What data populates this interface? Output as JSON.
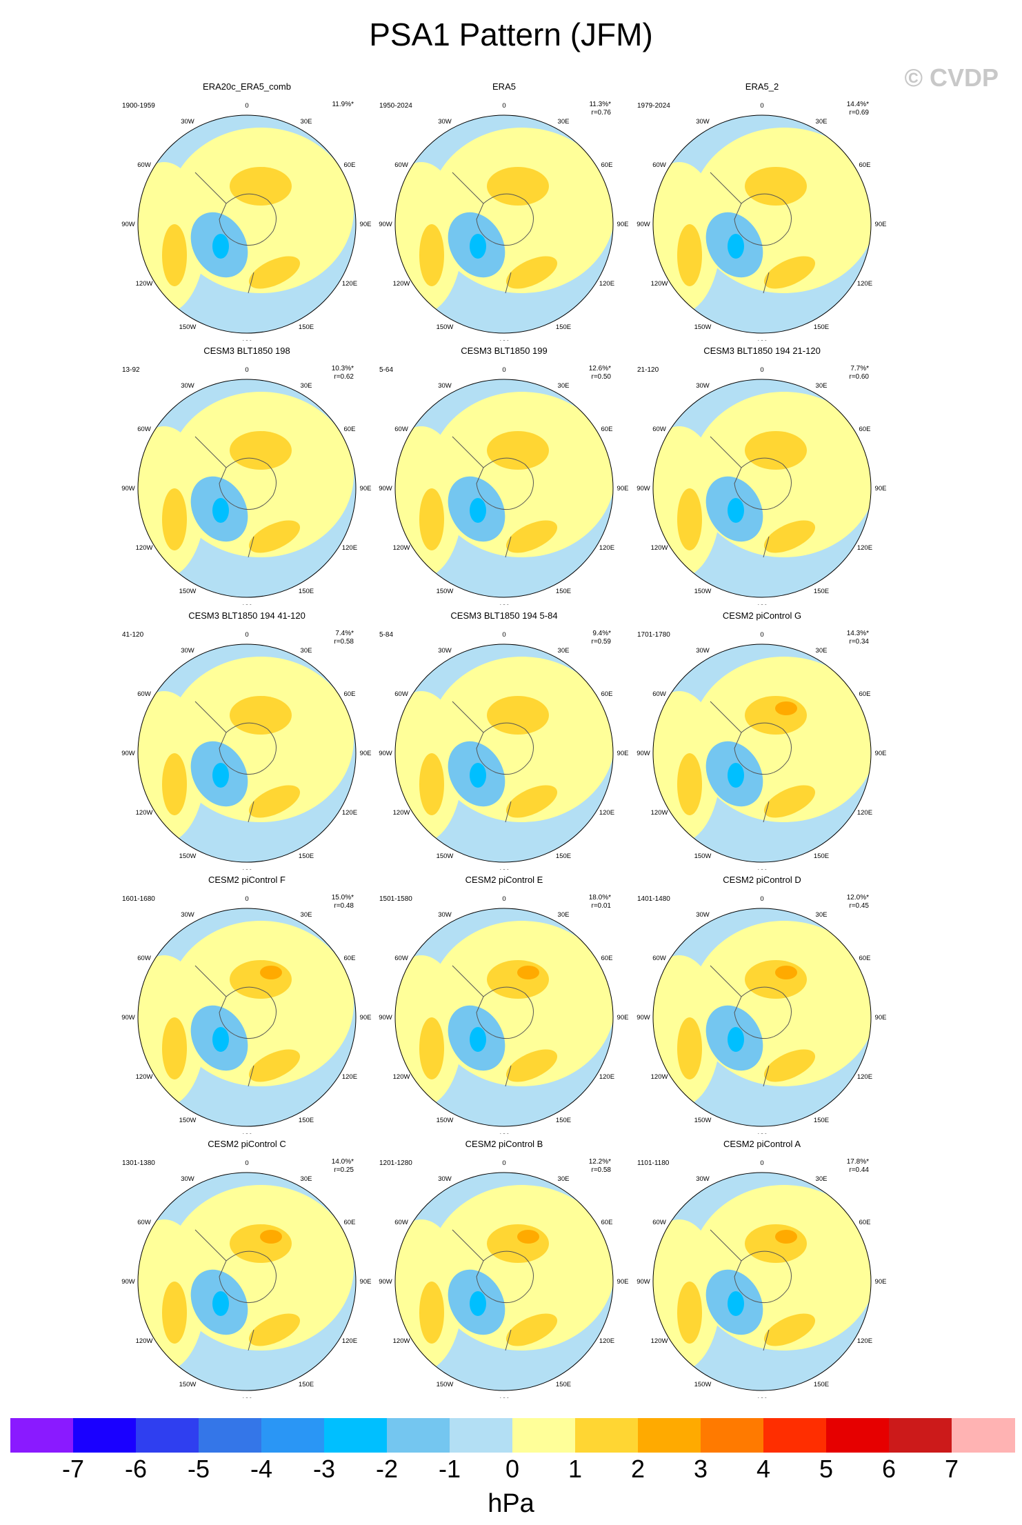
{
  "title": "PSA1 Pattern (JFM)",
  "watermark": "© CVDP",
  "lon_labels": {
    "l0": "0",
    "l30e": "30E",
    "l60e": "60E",
    "l90e": "90E",
    "l120e": "120E",
    "l150e": "150E",
    "l180": "180",
    "l150w": "150W",
    "l120w": "120W",
    "l90w": "90W",
    "l60w": "60W",
    "l30w": "30W"
  },
  "panels": [
    {
      "title": "ERA20c_ERA5_comb",
      "period": "1900-1959",
      "pct": "11.9%*",
      "r": ""
    },
    {
      "title": "ERA5",
      "period": "1950-2024",
      "pct": "11.3%*",
      "r": "r=0.76"
    },
    {
      "title": "ERA5_2",
      "period": "1979-2024",
      "pct": "14.4%*",
      "r": "r=0.69"
    },
    {
      "title": "CESM3 BLT1850 198",
      "period": "13-92",
      "pct": "10.3%*",
      "r": "r=0.62"
    },
    {
      "title": "CESM3 BLT1850 199",
      "period": "5-64",
      "pct": "12.6%*",
      "r": "r=0.50"
    },
    {
      "title": "CESM3 BLT1850 194 21-120",
      "period": "21-120",
      "pct": "7.7%*",
      "r": "r=0.60"
    },
    {
      "title": "CESM3 BLT1850 194 41-120",
      "period": "41-120",
      "pct": "7.4%*",
      "r": "r=0.58"
    },
    {
      "title": "CESM3 BLT1850 194 5-84",
      "period": "5-84",
      "pct": "9.4%*",
      "r": "r=0.59"
    },
    {
      "title": "CESM2 piControl G",
      "period": "1701-1780",
      "pct": "14.3%*",
      "r": "r=0.34"
    },
    {
      "title": "CESM2 piControl F",
      "period": "1601-1680",
      "pct": "15.0%*",
      "r": "r=0.48"
    },
    {
      "title": "CESM2 piControl E",
      "period": "1501-1580",
      "pct": "18.0%*",
      "r": "r=0.01"
    },
    {
      "title": "CESM2 piControl D",
      "period": "1401-1480",
      "pct": "12.0%*",
      "r": "r=0.45"
    },
    {
      "title": "CESM2 piControl C",
      "period": "1301-1380",
      "pct": "14.0%*",
      "r": "r=0.25"
    },
    {
      "title": "CESM2 piControl B",
      "period": "1201-1280",
      "pct": "12.2%*",
      "r": "r=0.58"
    },
    {
      "title": "CESM2 piControl A",
      "period": "1101-1180",
      "pct": "17.8%*",
      "r": "r=0.44"
    }
  ],
  "colorbar": {
    "units": "hPa",
    "colors": [
      "#8a1aff",
      "#1a00ff",
      "#2f3ff0",
      "#3476e8",
      "#2a96f5",
      "#00bfff",
      "#74c6f0",
      "#b3dff4",
      "#ffff99",
      "#ffd633",
      "#ffaa00",
      "#ff7a00",
      "#ff2e00",
      "#e60000",
      "#cc1a1a",
      "#ffb3b3"
    ],
    "labels": [
      "-7",
      "-6",
      "-5",
      "-4",
      "-3",
      "-2",
      "-1",
      "0",
      "1",
      "2",
      "3",
      "4",
      "5",
      "6",
      "7"
    ]
  },
  "palette": {
    "light_blue": "#b3dff4",
    "light_yellow": "#ffff99",
    "yellow": "#ffd633",
    "orange": "#ffaa00",
    "mid_blue": "#74c6f0",
    "blue": "#00bfff"
  }
}
